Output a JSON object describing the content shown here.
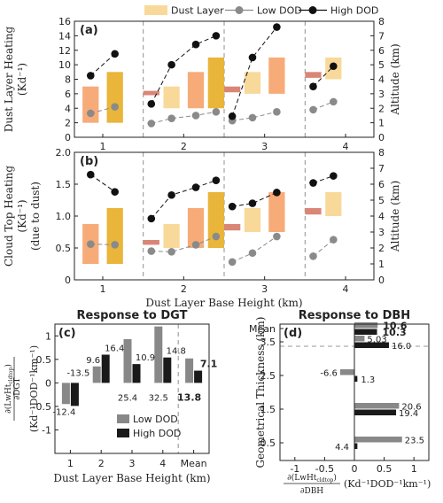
{
  "colors": {
    "box_light": "#f8d99a",
    "box_orange": "#f7ab78",
    "box_dark": "#e9b53a",
    "bar_red": "#d98676",
    "low_dod": "#8a8a8a",
    "high_dod": "#111111",
    "bar_gray": "#888888",
    "bar_black": "#1a1a1a",
    "dashed": "#9a9a9a"
  },
  "legend": {
    "dust_layer": "Dust Layer",
    "low_dod": "Low DOD",
    "high_dod": "High DOD"
  },
  "chart_data": [
    {
      "panel": "(a)",
      "type": "box_and_line",
      "ylabel_left_line1": "Dust Layer Heating",
      "ylabel_left_line2": "(Kd⁻¹)",
      "ylabel_right": "Altitude (km)",
      "ylim_left": [
        0,
        16
      ],
      "yticks_left": [
        "0",
        "2",
        "4",
        "6",
        "8",
        "10",
        "12",
        "14",
        "16"
      ],
      "ylim_right": [
        0,
        8
      ],
      "yticks_right": [
        "0",
        "1",
        "2",
        "3",
        "4",
        "5",
        "6",
        "7",
        "8"
      ],
      "xlim": [
        0.65,
        4.35
      ],
      "xticks": [
        1,
        2,
        3,
        4
      ],
      "xticklabels": [
        "1",
        "2",
        "3",
        "4"
      ],
      "group_dividers": [
        1.5,
        2.5,
        3.5
      ],
      "dust_layers": [
        {
          "x": 0.85,
          "bottom": 1.0,
          "top": 3.5,
          "color": "orange"
        },
        {
          "x": 1.15,
          "bottom": 1.0,
          "top": 4.5,
          "color": "dark"
        },
        {
          "x": 1.6,
          "bottom": 2.9,
          "top": 3.2,
          "color": "red"
        },
        {
          "x": 1.85,
          "bottom": 2.0,
          "top": 3.5,
          "color": "light"
        },
        {
          "x": 2.15,
          "bottom": 2.0,
          "top": 4.5,
          "color": "orange"
        },
        {
          "x": 2.4,
          "bottom": 2.0,
          "top": 5.5,
          "color": "dark"
        },
        {
          "x": 2.6,
          "bottom": 3.1,
          "top": 3.5,
          "color": "red"
        },
        {
          "x": 2.85,
          "bottom": 3.0,
          "top": 4.5,
          "color": "light"
        },
        {
          "x": 3.15,
          "bottom": 3.0,
          "top": 5.5,
          "color": "orange"
        },
        {
          "x": 3.6,
          "bottom": 4.1,
          "top": 4.5,
          "color": "red"
        },
        {
          "x": 3.85,
          "bottom": 4.0,
          "top": 5.5,
          "color": "light"
        }
      ],
      "series": [
        {
          "name": "Low DOD",
          "segments": [
            [
              [
                0.85,
                3.3
              ],
              [
                1.15,
                4.2
              ]
            ],
            [
              [
                1.6,
                1.9
              ],
              [
                1.85,
                2.6
              ],
              [
                2.15,
                3.0
              ],
              [
                2.4,
                3.5
              ]
            ],
            [
              [
                2.6,
                2.3
              ],
              [
                2.85,
                2.7
              ],
              [
                3.15,
                3.5
              ]
            ],
            [
              [
                3.6,
                3.8
              ],
              [
                3.85,
                4.9
              ]
            ]
          ]
        },
        {
          "name": "High DOD",
          "segments": [
            [
              [
                0.85,
                8.5
              ],
              [
                1.15,
                11.5
              ]
            ],
            [
              [
                1.6,
                4.6
              ],
              [
                1.85,
                10.0
              ],
              [
                2.15,
                12.8
              ],
              [
                2.4,
                14.0
              ]
            ],
            [
              [
                2.6,
                2.9
              ],
              [
                2.85,
                11.0
              ],
              [
                3.15,
                15.2
              ]
            ],
            [
              [
                3.6,
                7.0
              ],
              [
                3.85,
                9.8
              ]
            ]
          ]
        }
      ]
    },
    {
      "panel": "(b)",
      "type": "box_and_line",
      "ylabel_left_line1": "Cloud Top Heating",
      "ylabel_left_line2": "(Kd⁻¹)",
      "ylabel_left_line3": "(due to dust)",
      "ylabel_right": "Altitude (km)",
      "xlabel": "Dust Layer Base Height (km)",
      "ylim_left": [
        0,
        2
      ],
      "yticks_left": [
        "0",
        "0.5",
        "1.0",
        "1.5",
        "2.0"
      ],
      "ylim_right": [
        0,
        8
      ],
      "yticks_right": [
        "0",
        "1",
        "2",
        "3",
        "4",
        "5",
        "6",
        "7",
        "8"
      ],
      "xlim": [
        0.65,
        4.35
      ],
      "xticks": [
        1,
        2,
        3,
        4
      ],
      "xticklabels": [
        "1",
        "2",
        "3",
        "4"
      ],
      "group_dividers": [
        1.5,
        2.5,
        3.5
      ],
      "dust_layers": [
        {
          "x": 0.85,
          "bottom": 1.0,
          "top": 3.5,
          "color": "orange"
        },
        {
          "x": 1.15,
          "bottom": 1.0,
          "top": 4.5,
          "color": "dark"
        },
        {
          "x": 1.6,
          "bottom": 2.2,
          "top": 2.5,
          "color": "red"
        },
        {
          "x": 1.85,
          "bottom": 2.0,
          "top": 3.5,
          "color": "light"
        },
        {
          "x": 2.15,
          "bottom": 2.0,
          "top": 4.5,
          "color": "orange"
        },
        {
          "x": 2.4,
          "bottom": 2.0,
          "top": 5.5,
          "color": "dark"
        },
        {
          "x": 2.6,
          "bottom": 3.1,
          "top": 3.5,
          "color": "red"
        },
        {
          "x": 2.85,
          "bottom": 3.0,
          "top": 4.5,
          "color": "light"
        },
        {
          "x": 3.15,
          "bottom": 3.0,
          "top": 5.5,
          "color": "orange"
        },
        {
          "x": 3.6,
          "bottom": 4.1,
          "top": 4.5,
          "color": "red"
        },
        {
          "x": 3.85,
          "bottom": 4.0,
          "top": 5.5,
          "color": "light"
        }
      ],
      "series": [
        {
          "name": "Low DOD",
          "segments": [
            [
              [
                0.85,
                0.56
              ],
              [
                1.15,
                0.55
              ]
            ],
            [
              [
                1.6,
                0.45
              ],
              [
                1.85,
                0.44
              ],
              [
                2.15,
                0.55
              ],
              [
                2.4,
                0.68
              ]
            ],
            [
              [
                2.6,
                0.28
              ],
              [
                2.85,
                0.42
              ],
              [
                3.15,
                0.68
              ]
            ],
            [
              [
                3.6,
                0.37
              ],
              [
                3.85,
                0.63
              ]
            ]
          ]
        },
        {
          "name": "High DOD",
          "segments": [
            [
              [
                0.85,
                1.65
              ],
              [
                1.15,
                1.38
              ]
            ],
            [
              [
                1.6,
                0.96
              ],
              [
                1.85,
                1.33
              ],
              [
                2.15,
                1.45
              ],
              [
                2.4,
                1.56
              ]
            ],
            [
              [
                2.6,
                1.15
              ],
              [
                2.85,
                1.2
              ],
              [
                3.15,
                1.37
              ]
            ],
            [
              [
                3.6,
                1.52
              ],
              [
                3.85,
                1.63
              ]
            ]
          ]
        }
      ]
    },
    {
      "panel": "(c)",
      "type": "bar",
      "title": "Response to DGT",
      "xlabel": "Dust Layer Base Height (km)",
      "ylabel": "∂(LwHt_cldtop)/∂DGT (Kd⁻¹DOD⁻¹km⁻¹)",
      "ylabel_numerator": "∂(LwHt",
      "ylabel_sub": "cldtop",
      "ylabel_denominator": "∂DGT",
      "ylabel_units": "(Kd⁻¹DOD⁻¹km⁻¹)",
      "categories": [
        "1",
        "2",
        "3",
        "4",
        "Mean"
      ],
      "ylim": [
        -1.5,
        1.25
      ],
      "yticks": [
        "-1",
        "-0.5",
        "0",
        "0.5",
        "1"
      ],
      "series": [
        {
          "name": "Low DOD",
          "values": [
            -0.45,
            0.35,
            0.93,
            1.2,
            0.52
          ],
          "labels": [
            "-12.4",
            "9.6",
            "25.4",
            "32.5",
            "13.8"
          ]
        },
        {
          "name": "High DOD",
          "values": [
            -0.49,
            0.6,
            0.4,
            0.54,
            0.26
          ],
          "labels": [
            "-13.5",
            "16.4",
            "10.9",
            "14.8",
            "7.1"
          ]
        }
      ]
    },
    {
      "panel": "(d)",
      "type": "bar_horizontal",
      "title": "Response to DBH",
      "xlabel": "∂(LwHt_cldtop)/∂DBH (Kd⁻¹DOD⁻¹km⁻¹)",
      "xlabel_numerator": "∂(LwHt",
      "xlabel_sub": "cldtop",
      "xlabel_denominator": "∂DBH",
      "xlabel_units": "(Kd⁻¹DOD⁻¹km⁻¹)",
      "ylabel": "Geometrical Thickness (km)",
      "categories": [
        "0.5",
        "1.5",
        "2.5",
        "3.5",
        "Mean"
      ],
      "xlim": [
        -1.25,
        1.25
      ],
      "xticks": [
        "-1",
        "-0.5",
        "0",
        "0.5",
        "1"
      ],
      "series": [
        {
          "name": "Low DOD",
          "values": [
            0.8,
            0.75,
            -0.24,
            0.17,
            0.39
          ],
          "labels": [
            "23.5",
            "20.6",
            "-6.6",
            "5.03",
            "10.6"
          ]
        },
        {
          "name": "High DOD",
          "values": [
            0.05,
            0.7,
            0.05,
            0.58,
            0.38
          ],
          "labels": [
            "4.4",
            "19.4",
            "1.3",
            "16.0",
            "10.3"
          ]
        }
      ]
    }
  ]
}
